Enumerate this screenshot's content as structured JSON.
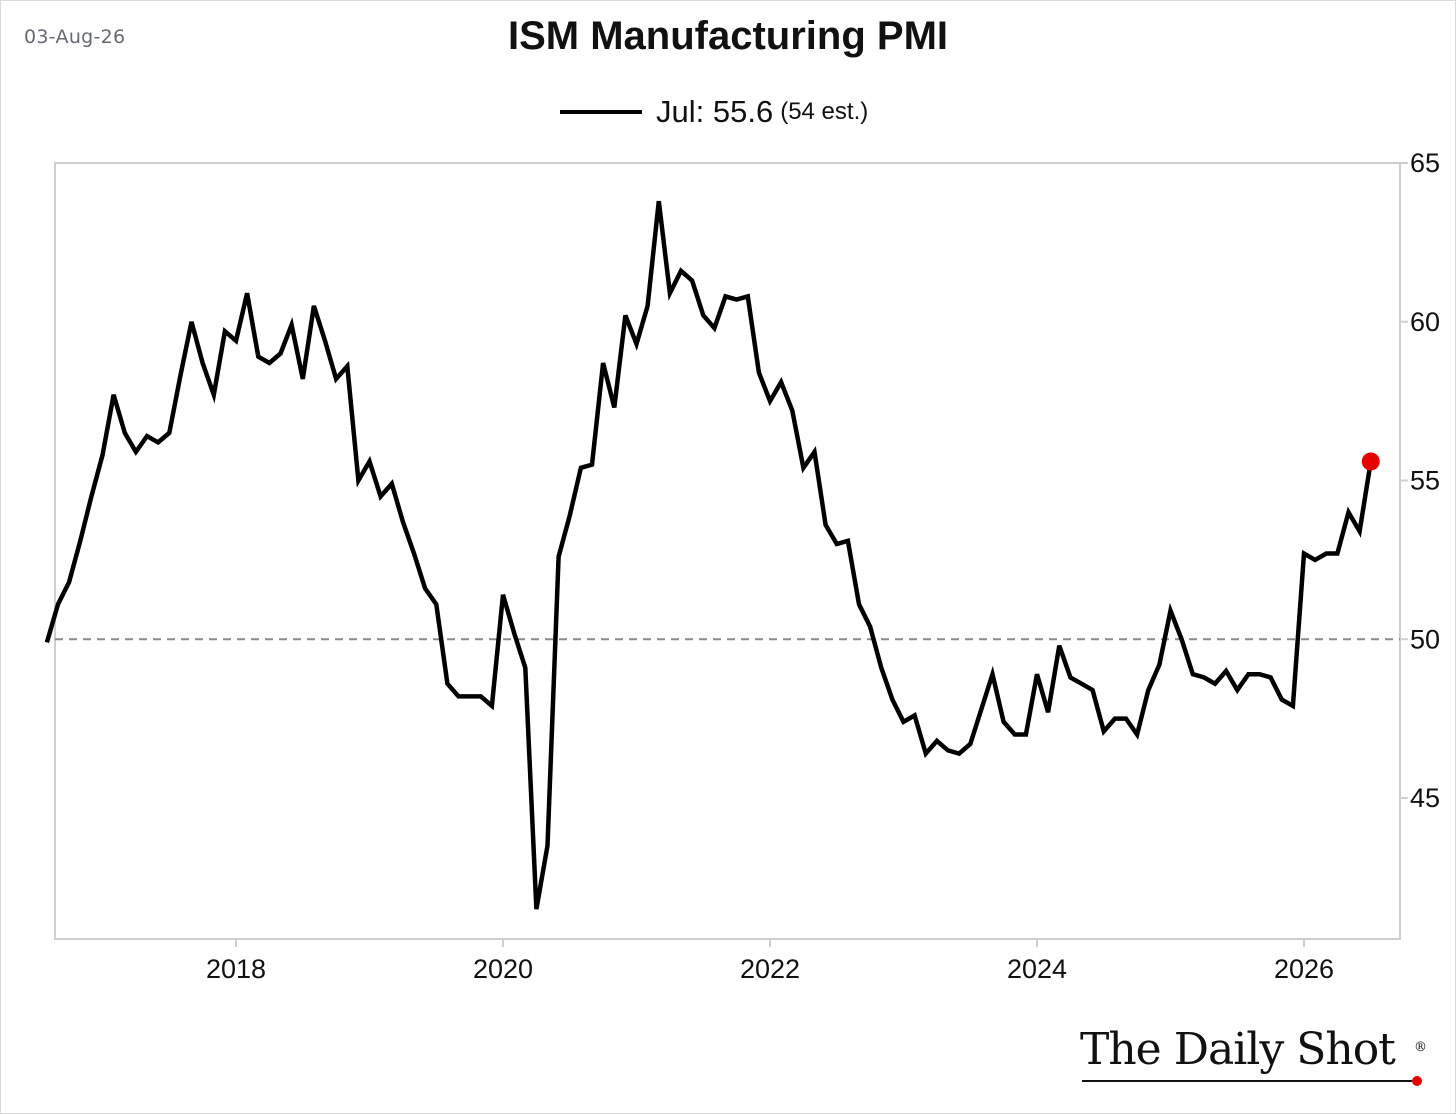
{
  "date_label": "03-Aug-26",
  "legend": {
    "label": "Jul: 55.6",
    "est": "(54 est.)"
  },
  "brand": {
    "name": "The Daily Shot",
    "mark": "®"
  },
  "chart_data": {
    "type": "line",
    "title": "ISM Manufacturing PMI",
    "xlabel": "",
    "ylabel": "",
    "x_ticks": [
      "2018",
      "2020",
      "2022",
      "2024",
      "2026"
    ],
    "y_ticks": [
      45,
      50,
      55,
      60,
      65
    ],
    "xlim": [
      "2016-08",
      "2026-09"
    ],
    "ylim": [
      40.5,
      65
    ],
    "reference_line": 50,
    "grid": false,
    "y_axis_side": "right",
    "line_color": "#000000",
    "highlight_color": "#e60000",
    "series": [
      {
        "name": "Jul: 55.6",
        "highlight_last": true,
        "points": [
          [
            "2016-08",
            49.9
          ],
          [
            "2016-09",
            51.1
          ],
          [
            "2016-10",
            51.8
          ],
          [
            "2016-11",
            53.1
          ],
          [
            "2016-12",
            54.5
          ],
          [
            "2017-01",
            55.8
          ],
          [
            "2017-02",
            57.7
          ],
          [
            "2017-03",
            56.5
          ],
          [
            "2017-04",
            55.9
          ],
          [
            "2017-05",
            56.4
          ],
          [
            "2017-06",
            56.2
          ],
          [
            "2017-07",
            56.5
          ],
          [
            "2017-08",
            58.3
          ],
          [
            "2017-09",
            60.0
          ],
          [
            "2017-10",
            58.7
          ],
          [
            "2017-11",
            57.7
          ],
          [
            "2017-12",
            59.7
          ],
          [
            "2018-01",
            59.4
          ],
          [
            "2018-02",
            60.9
          ],
          [
            "2018-03",
            58.9
          ],
          [
            "2018-04",
            58.7
          ],
          [
            "2018-05",
            59.0
          ],
          [
            "2018-06",
            59.9
          ],
          [
            "2018-07",
            58.2
          ],
          [
            "2018-08",
            60.5
          ],
          [
            "2018-09",
            59.4
          ],
          [
            "2018-10",
            58.2
          ],
          [
            "2018-11",
            58.6
          ],
          [
            "2018-12",
            55.0
          ],
          [
            "2019-01",
            55.6
          ],
          [
            "2019-02",
            54.5
          ],
          [
            "2019-03",
            54.9
          ],
          [
            "2019-04",
            53.7
          ],
          [
            "2019-05",
            52.7
          ],
          [
            "2019-06",
            51.6
          ],
          [
            "2019-07",
            51.1
          ],
          [
            "2019-08",
            48.6
          ],
          [
            "2019-09",
            48.2
          ],
          [
            "2019-10",
            48.2
          ],
          [
            "2019-11",
            48.2
          ],
          [
            "2019-12",
            47.9
          ],
          [
            "2020-01",
            51.4
          ],
          [
            "2020-02",
            50.2
          ],
          [
            "2020-03",
            49.1
          ],
          [
            "2020-04",
            41.5
          ],
          [
            "2020-05",
            43.5
          ],
          [
            "2020-06",
            52.6
          ],
          [
            "2020-07",
            53.9
          ],
          [
            "2020-08",
            55.4
          ],
          [
            "2020-09",
            55.5
          ],
          [
            "2020-10",
            58.7
          ],
          [
            "2020-11",
            57.3
          ],
          [
            "2020-12",
            60.2
          ],
          [
            "2021-01",
            59.3
          ],
          [
            "2021-02",
            60.5
          ],
          [
            "2021-03",
            63.8
          ],
          [
            "2021-04",
            60.9
          ],
          [
            "2021-05",
            61.6
          ],
          [
            "2021-06",
            61.3
          ],
          [
            "2021-07",
            60.2
          ],
          [
            "2021-08",
            59.8
          ],
          [
            "2021-09",
            60.8
          ],
          [
            "2021-10",
            60.7
          ],
          [
            "2021-11",
            60.8
          ],
          [
            "2021-12",
            58.4
          ],
          [
            "2022-01",
            57.5
          ],
          [
            "2022-02",
            58.1
          ],
          [
            "2022-03",
            57.2
          ],
          [
            "2022-04",
            55.4
          ],
          [
            "2022-05",
            55.9
          ],
          [
            "2022-06",
            53.6
          ],
          [
            "2022-07",
            53.0
          ],
          [
            "2022-08",
            53.1
          ],
          [
            "2022-09",
            51.1
          ],
          [
            "2022-10",
            50.4
          ],
          [
            "2022-11",
            49.1
          ],
          [
            "2022-12",
            48.1
          ],
          [
            "2023-01",
            47.4
          ],
          [
            "2023-02",
            47.6
          ],
          [
            "2023-03",
            46.4
          ],
          [
            "2023-04",
            46.8
          ],
          [
            "2023-05",
            46.5
          ],
          [
            "2023-06",
            46.4
          ],
          [
            "2023-07",
            46.7
          ],
          [
            "2023-08",
            47.8
          ],
          [
            "2023-09",
            48.9
          ],
          [
            "2023-10",
            47.4
          ],
          [
            "2023-11",
            47.0
          ],
          [
            "2023-12",
            47.0
          ],
          [
            "2024-01",
            48.9
          ],
          [
            "2024-02",
            47.7
          ],
          [
            "2024-03",
            49.8
          ],
          [
            "2024-04",
            48.8
          ],
          [
            "2024-05",
            48.6
          ],
          [
            "2024-06",
            48.4
          ],
          [
            "2024-07",
            47.1
          ],
          [
            "2024-08",
            47.5
          ],
          [
            "2024-09",
            47.5
          ],
          [
            "2024-10",
            47.0
          ],
          [
            "2024-11",
            48.4
          ],
          [
            "2024-12",
            49.2
          ],
          [
            "2025-01",
            50.9
          ],
          [
            "2025-02",
            50.0
          ],
          [
            "2025-03",
            48.9
          ],
          [
            "2025-04",
            48.8
          ],
          [
            "2025-05",
            48.6
          ],
          [
            "2025-06",
            49.0
          ],
          [
            "2025-07",
            48.4
          ],
          [
            "2025-08",
            48.9
          ],
          [
            "2025-09",
            48.9
          ],
          [
            "2025-10",
            48.8
          ],
          [
            "2025-11",
            48.1
          ],
          [
            "2025-12",
            47.9
          ],
          [
            "2026-01",
            52.7
          ],
          [
            "2026-02",
            52.5
          ],
          [
            "2026-03",
            52.7
          ],
          [
            "2026-04",
            52.7
          ],
          [
            "2026-05",
            54.0
          ],
          [
            "2026-06",
            53.4
          ],
          [
            "2026-07",
            55.6
          ]
        ]
      }
    ]
  }
}
